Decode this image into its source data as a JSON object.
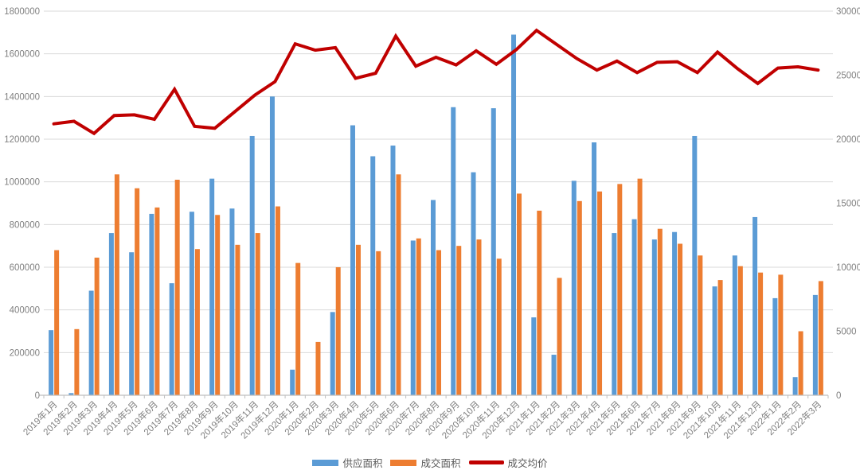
{
  "chart_data": {
    "type": "combo-bar-line",
    "title": "",
    "categories": [
      "2019年1月",
      "2019年2月",
      "2019年3月",
      "2019年4月",
      "2019年5月",
      "2019年6月",
      "2019年7月",
      "2019年8月",
      "2019年9月",
      "2019年10月",
      "2019年11月",
      "2019年12月",
      "2020年1月",
      "2020年2月",
      "2020年3月",
      "2020年4月",
      "2020年5月",
      "2020年6月",
      "2020年7月",
      "2020年8月",
      "2020年9月",
      "2020年10月",
      "2020年11月",
      "2020年12月",
      "2021年1月",
      "2021年2月",
      "2021年3月",
      "2021年4月",
      "2021年5月",
      "2021年6月",
      "2021年7月",
      "2021年8月",
      "2021年9月",
      "2021年10月",
      "2021年11月",
      "2021年12月",
      "2022年1月",
      "2022年2月",
      "2022年3月"
    ],
    "series": [
      {
        "name": "供应面积",
        "type": "bar",
        "axis": "left",
        "color": "#5B9BD5",
        "values": [
          305000,
          10000,
          490000,
          760000,
          670000,
          850000,
          525000,
          860000,
          1015000,
          875000,
          1215000,
          1400000,
          120000,
          0,
          390000,
          1265000,
          1120000,
          1170000,
          725000,
          915000,
          1350000,
          1045000,
          1345000,
          1690000,
          365000,
          190000,
          1005000,
          1185000,
          760000,
          825000,
          730000,
          765000,
          1215000,
          510000,
          655000,
          835000,
          455000,
          85000,
          470000
        ]
      },
      {
        "name": "成交面积",
        "type": "bar",
        "axis": "left",
        "color": "#ED7D31",
        "values": [
          680000,
          310000,
          645000,
          1035000,
          970000,
          880000,
          1010000,
          685000,
          845000,
          705000,
          760000,
          885000,
          620000,
          250000,
          600000,
          705000,
          675000,
          1035000,
          735000,
          680000,
          700000,
          730000,
          640000,
          945000,
          865000,
          550000,
          910000,
          955000,
          990000,
          1015000,
          780000,
          710000,
          655000,
          540000,
          605000,
          575000,
          565000,
          300000,
          535000
        ]
      },
      {
        "name": "成交均价",
        "type": "line",
        "axis": "right",
        "color": "#C00000",
        "values": [
          21200,
          21400,
          20450,
          21850,
          21900,
          21550,
          23900,
          21000,
          20850,
          22150,
          23450,
          24500,
          27450,
          26950,
          27150,
          24750,
          25150,
          28050,
          25700,
          26400,
          25800,
          26900,
          25850,
          27000,
          28500,
          27400,
          26300,
          25400,
          26100,
          25200,
          26000,
          26050,
          25200,
          26800,
          25500,
          24350,
          25550,
          25650,
          25400
        ]
      }
    ],
    "left_axis": {
      "min": 0,
      "max": 1800000,
      "step": 200000,
      "tick_labels": [
        "0",
        "200000",
        "400000",
        "600000",
        "800000",
        "1000000",
        "1200000",
        "1400000",
        "1600000",
        "1800000"
      ]
    },
    "right_axis": {
      "min": 0,
      "max": 30000,
      "step": 5000,
      "tick_labels": [
        "0",
        "5000",
        "10000",
        "15000",
        "20000",
        "25000",
        "30000"
      ]
    },
    "grid": true,
    "legend_position": "bottom"
  },
  "legend": {
    "supply_label": "供应面积",
    "deal_label": "成交面积",
    "price_label": "成交均价"
  },
  "colors": {
    "supply_bar": "#5B9BD5",
    "deal_bar": "#ED7D31",
    "price_line": "#C00000",
    "gridline": "#D9D9D9",
    "axis_line": "#BFBFBF",
    "tick_text": "#808080",
    "legend_text": "#595959",
    "background": "#FFFFFF"
  }
}
